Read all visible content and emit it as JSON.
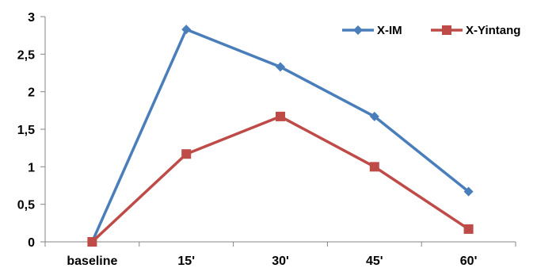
{
  "chart_data": {
    "type": "line",
    "categories": [
      "baseline",
      "15'",
      "30'",
      "45'",
      "60'"
    ],
    "yticks": [
      "0",
      "0,5",
      "1",
      "1,5",
      "2",
      "2,5",
      "3"
    ],
    "ylim": [
      0,
      3
    ],
    "grid": false,
    "legend": "top-right",
    "series": [
      {
        "name": "X-IM",
        "color": "#4a7ebb",
        "marker": "diamond",
        "values": [
          0,
          2.83,
          2.33,
          1.67,
          0.67
        ]
      },
      {
        "name": "X-Yintang",
        "color": "#be4b48",
        "marker": "square",
        "values": [
          0,
          1.17,
          1.67,
          1.0,
          0.17
        ]
      }
    ]
  }
}
